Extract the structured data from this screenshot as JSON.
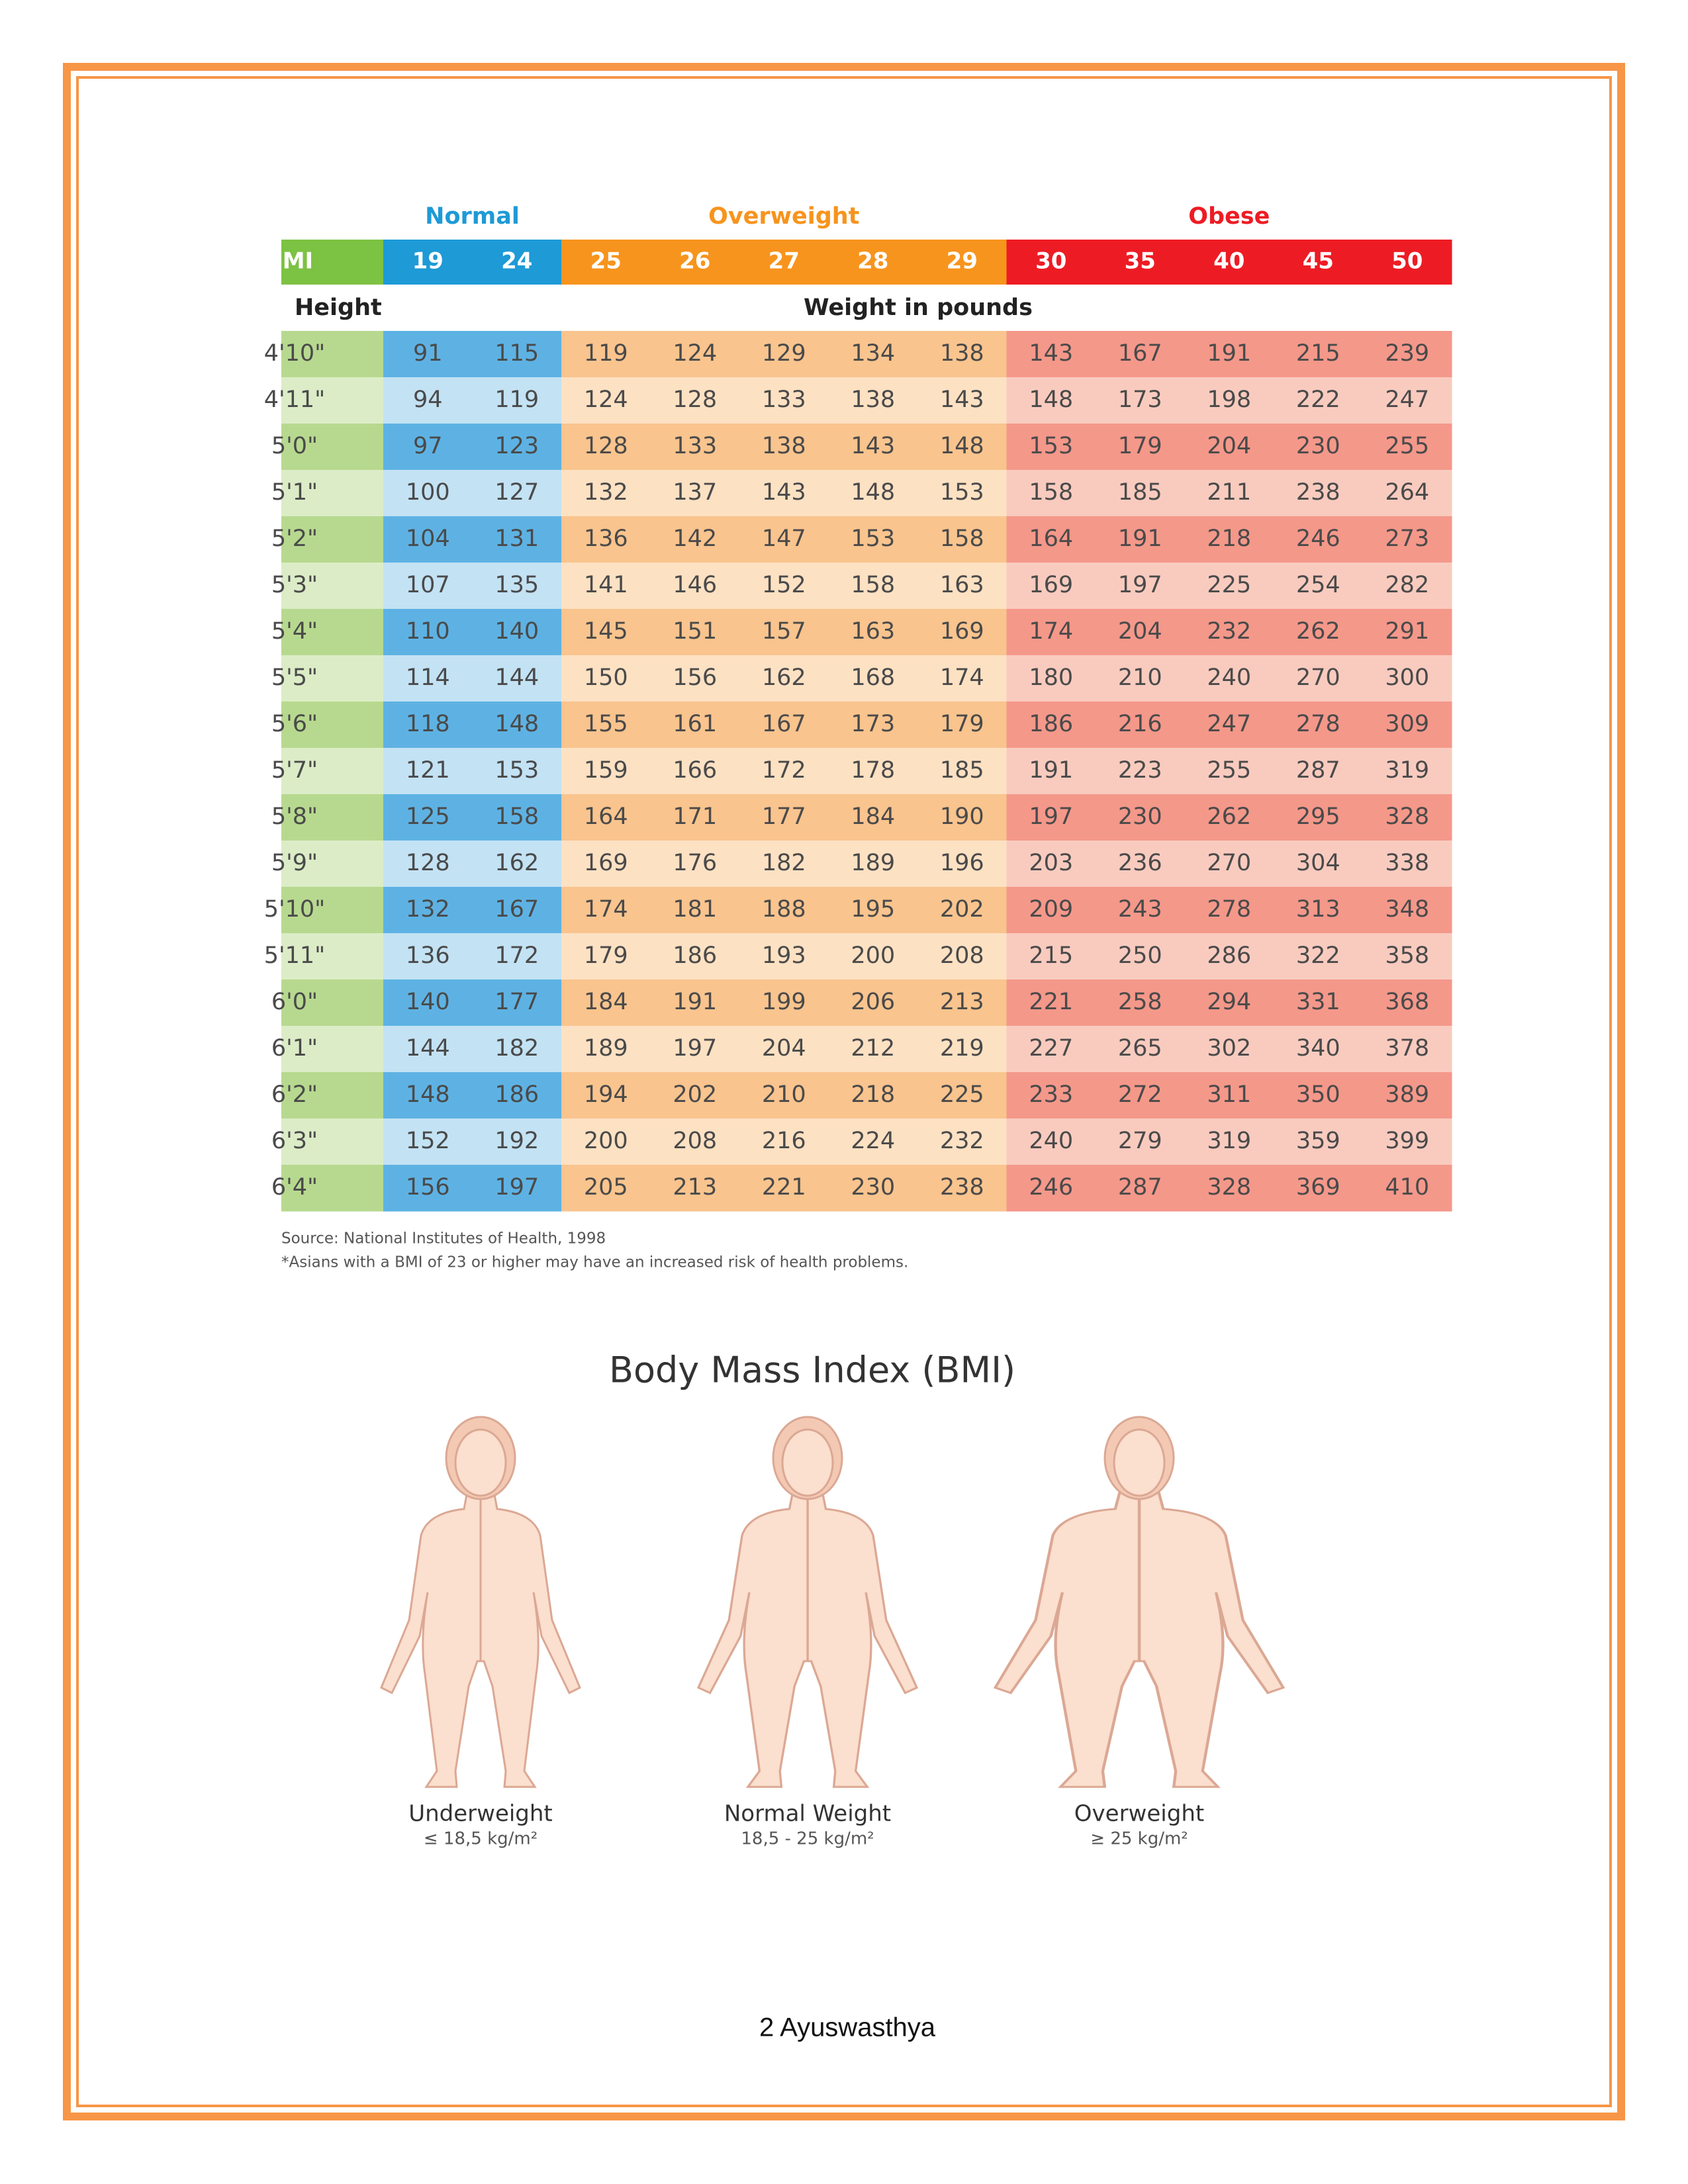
{
  "table": {
    "groups": [
      "Normal",
      "Overweight",
      "Obese"
    ],
    "bmi_label": "BMI",
    "bmi_values": [
      19,
      24,
      25,
      26,
      27,
      28,
      29,
      30,
      35,
      40,
      45,
      50
    ],
    "height_label": "Height",
    "weight_label": "Weight in pounds",
    "rows": [
      {
        "height": "4'10\"",
        "weights": [
          91,
          115,
          119,
          124,
          129,
          134,
          138,
          143,
          167,
          191,
          215,
          239
        ]
      },
      {
        "height": "4'11\"",
        "weights": [
          94,
          119,
          124,
          128,
          133,
          138,
          143,
          148,
          173,
          198,
          222,
          247
        ]
      },
      {
        "height": "5'0\"",
        "weights": [
          97,
          123,
          128,
          133,
          138,
          143,
          148,
          153,
          179,
          204,
          230,
          255
        ]
      },
      {
        "height": "5'1\"",
        "weights": [
          100,
          127,
          132,
          137,
          143,
          148,
          153,
          158,
          185,
          211,
          238,
          264
        ]
      },
      {
        "height": "5'2\"",
        "weights": [
          104,
          131,
          136,
          142,
          147,
          153,
          158,
          164,
          191,
          218,
          246,
          273
        ]
      },
      {
        "height": "5'3\"",
        "weights": [
          107,
          135,
          141,
          146,
          152,
          158,
          163,
          169,
          197,
          225,
          254,
          282
        ]
      },
      {
        "height": "5'4\"",
        "weights": [
          110,
          140,
          145,
          151,
          157,
          163,
          169,
          174,
          204,
          232,
          262,
          291
        ]
      },
      {
        "height": "5'5\"",
        "weights": [
          114,
          144,
          150,
          156,
          162,
          168,
          174,
          180,
          210,
          240,
          270,
          300
        ]
      },
      {
        "height": "5'6\"",
        "weights": [
          118,
          148,
          155,
          161,
          167,
          173,
          179,
          186,
          216,
          247,
          278,
          309
        ]
      },
      {
        "height": "5'7\"",
        "weights": [
          121,
          153,
          159,
          166,
          172,
          178,
          185,
          191,
          223,
          255,
          287,
          319
        ]
      },
      {
        "height": "5'8\"",
        "weights": [
          125,
          158,
          164,
          171,
          177,
          184,
          190,
          197,
          230,
          262,
          295,
          328
        ]
      },
      {
        "height": "5'9\"",
        "weights": [
          128,
          162,
          169,
          176,
          182,
          189,
          196,
          203,
          236,
          270,
          304,
          338
        ]
      },
      {
        "height": "5'10\"",
        "weights": [
          132,
          167,
          174,
          181,
          188,
          195,
          202,
          209,
          243,
          278,
          313,
          348
        ]
      },
      {
        "height": "5'11\"",
        "weights": [
          136,
          172,
          179,
          186,
          193,
          200,
          208,
          215,
          250,
          286,
          322,
          358
        ]
      },
      {
        "height": "6'0\"",
        "weights": [
          140,
          177,
          184,
          191,
          199,
          206,
          213,
          221,
          258,
          294,
          331,
          368
        ]
      },
      {
        "height": "6'1\"",
        "weights": [
          144,
          182,
          189,
          197,
          204,
          212,
          219,
          227,
          265,
          302,
          340,
          378
        ]
      },
      {
        "height": "6'2\"",
        "weights": [
          148,
          186,
          194,
          202,
          210,
          218,
          225,
          233,
          272,
          311,
          350,
          389
        ]
      },
      {
        "height": "6'3\"",
        "weights": [
          152,
          192,
          200,
          208,
          216,
          224,
          232,
          240,
          279,
          319,
          359,
          399
        ]
      },
      {
        "height": "6'4\"",
        "weights": [
          156,
          197,
          205,
          213,
          221,
          230,
          238,
          246,
          287,
          328,
          369,
          410
        ]
      }
    ]
  },
  "source": "Source: National Institutes of Health, 1998",
  "footnote": "*Asians with a BMI of 23 or higher may have an increased risk of health problems.",
  "figure": {
    "title": "Body Mass Index (BMI)",
    "items": [
      {
        "label": "Underweight",
        "range": "≤ 18,5 kg/m²"
      },
      {
        "label": "Normal Weight",
        "range": "18,5 - 25 kg/m²"
      },
      {
        "label": "Overweight",
        "range": "≥ 25 kg/m²"
      }
    ]
  },
  "footer": "2 Ayuswasthya"
}
